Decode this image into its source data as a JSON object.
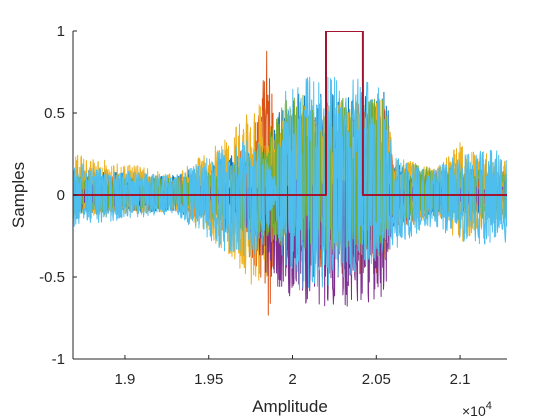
{
  "chart_data": {
    "type": "line",
    "xlabel": "Amplitude",
    "ylabel": "Samples",
    "x_exponent_label": "×10",
    "x_exponent_power": "4",
    "xlim": [
      18690,
      21280
    ],
    "ylim": [
      -1,
      1
    ],
    "x_ticks": [
      19000,
      19500,
      20000,
      20500,
      21000
    ],
    "x_tick_labels": [
      "1.9",
      "1.95",
      "2",
      "2.05",
      "2.1"
    ],
    "y_ticks": [
      -1,
      -0.5,
      0,
      0.5,
      1
    ],
    "y_tick_labels": [
      "-1",
      "-0.5",
      "0",
      "0.5",
      "1"
    ],
    "grid": false,
    "box": false,
    "series": [
      {
        "color": "#0072BD",
        "env": [
          [
            18690,
            0.16,
            -0.12
          ],
          [
            19300,
            0.12,
            -0.1
          ],
          [
            19600,
            0.25,
            -0.15
          ],
          [
            19850,
            0.3,
            -0.2
          ],
          [
            19950,
            0.62,
            -0.15
          ],
          [
            20100,
            0.64,
            -0.15
          ],
          [
            20350,
            0.63,
            -0.13
          ],
          [
            20560,
            0.64,
            -0.15
          ],
          [
            20600,
            0.2,
            -0.2
          ],
          [
            20900,
            0.1,
            -0.1
          ],
          [
            21280,
            0.15,
            -0.12
          ]
        ]
      },
      {
        "color": "#D95319",
        "env": [
          [
            18690,
            0.12,
            -0.1
          ],
          [
            19300,
            0.1,
            -0.1
          ],
          [
            19650,
            0.2,
            -0.25
          ],
          [
            19800,
            0.5,
            -0.5
          ],
          [
            19850,
            0.95,
            -0.85
          ],
          [
            19900,
            0.35,
            -0.35
          ],
          [
            20000,
            0.5,
            -0.4
          ],
          [
            20300,
            0.55,
            -0.48
          ],
          [
            20560,
            0.58,
            -0.5
          ],
          [
            20600,
            0.18,
            -0.2
          ],
          [
            21000,
            0.14,
            -0.1
          ],
          [
            21280,
            0.12,
            -0.1
          ]
        ]
      },
      {
        "color": "#EDB120",
        "env": [
          [
            18690,
            0.25,
            -0.15
          ],
          [
            19000,
            0.2,
            -0.12
          ],
          [
            19300,
            0.12,
            -0.1
          ],
          [
            19600,
            0.35,
            -0.35
          ],
          [
            19750,
            0.55,
            -0.55
          ],
          [
            19850,
            0.55,
            -0.5
          ],
          [
            19900,
            0.4,
            -0.2
          ],
          [
            20000,
            0.55,
            -0.3
          ],
          [
            20560,
            0.6,
            -0.4
          ],
          [
            20600,
            0.25,
            -0.25
          ],
          [
            20850,
            0.15,
            -0.12
          ],
          [
            21000,
            0.33,
            -0.3
          ],
          [
            21280,
            0.2,
            -0.15
          ]
        ]
      },
      {
        "color": "#7E2F8E",
        "env": [
          [
            18690,
            0.08,
            -0.08
          ],
          [
            19500,
            0.05,
            -0.05
          ],
          [
            19650,
            0.05,
            -0.1
          ],
          [
            19780,
            0.05,
            -0.3
          ],
          [
            19850,
            0.05,
            -0.5
          ],
          [
            19950,
            0.1,
            -0.6
          ],
          [
            20100,
            0.1,
            -0.68
          ],
          [
            20300,
            0.1,
            -0.7
          ],
          [
            20560,
            0.1,
            -0.62
          ],
          [
            20600,
            0.05,
            -0.08
          ],
          [
            21280,
            0.05,
            -0.06
          ]
        ]
      },
      {
        "color": "#77AC30",
        "env": [
          [
            18690,
            0.12,
            -0.12
          ],
          [
            19300,
            0.1,
            -0.08
          ],
          [
            19650,
            0.2,
            -0.2
          ],
          [
            19850,
            0.35,
            -0.3
          ],
          [
            19950,
            0.58,
            -0.35
          ],
          [
            20100,
            0.62,
            -0.35
          ],
          [
            20350,
            0.6,
            -0.33
          ],
          [
            20560,
            0.6,
            -0.3
          ],
          [
            20600,
            0.2,
            -0.15
          ],
          [
            21280,
            0.14,
            -0.15
          ]
        ]
      },
      {
        "color": "#4DBEEE",
        "env": [
          [
            18690,
            0.2,
            -0.2
          ],
          [
            19000,
            0.15,
            -0.15
          ],
          [
            19300,
            0.12,
            -0.12
          ],
          [
            19600,
            0.3,
            -0.35
          ],
          [
            19800,
            0.35,
            -0.4
          ],
          [
            19900,
            0.1,
            -0.05
          ],
          [
            19920,
            0.6,
            -0.35
          ],
          [
            20050,
            0.72,
            -0.6
          ],
          [
            20300,
            0.72,
            -0.55
          ],
          [
            20500,
            0.7,
            -0.4
          ],
          [
            20560,
            0.65,
            -0.35
          ],
          [
            20600,
            0.25,
            -0.35
          ],
          [
            20800,
            0.15,
            -0.2
          ],
          [
            21000,
            0.25,
            -0.28
          ],
          [
            21280,
            0.3,
            -0.32
          ]
        ]
      },
      {
        "color": "#A2142F",
        "step": [
          [
            18690,
            0
          ],
          [
            20200,
            0
          ],
          [
            20200,
            1
          ],
          [
            20420,
            1
          ],
          [
            20420,
            0
          ],
          [
            21280,
            0
          ]
        ]
      }
    ]
  }
}
